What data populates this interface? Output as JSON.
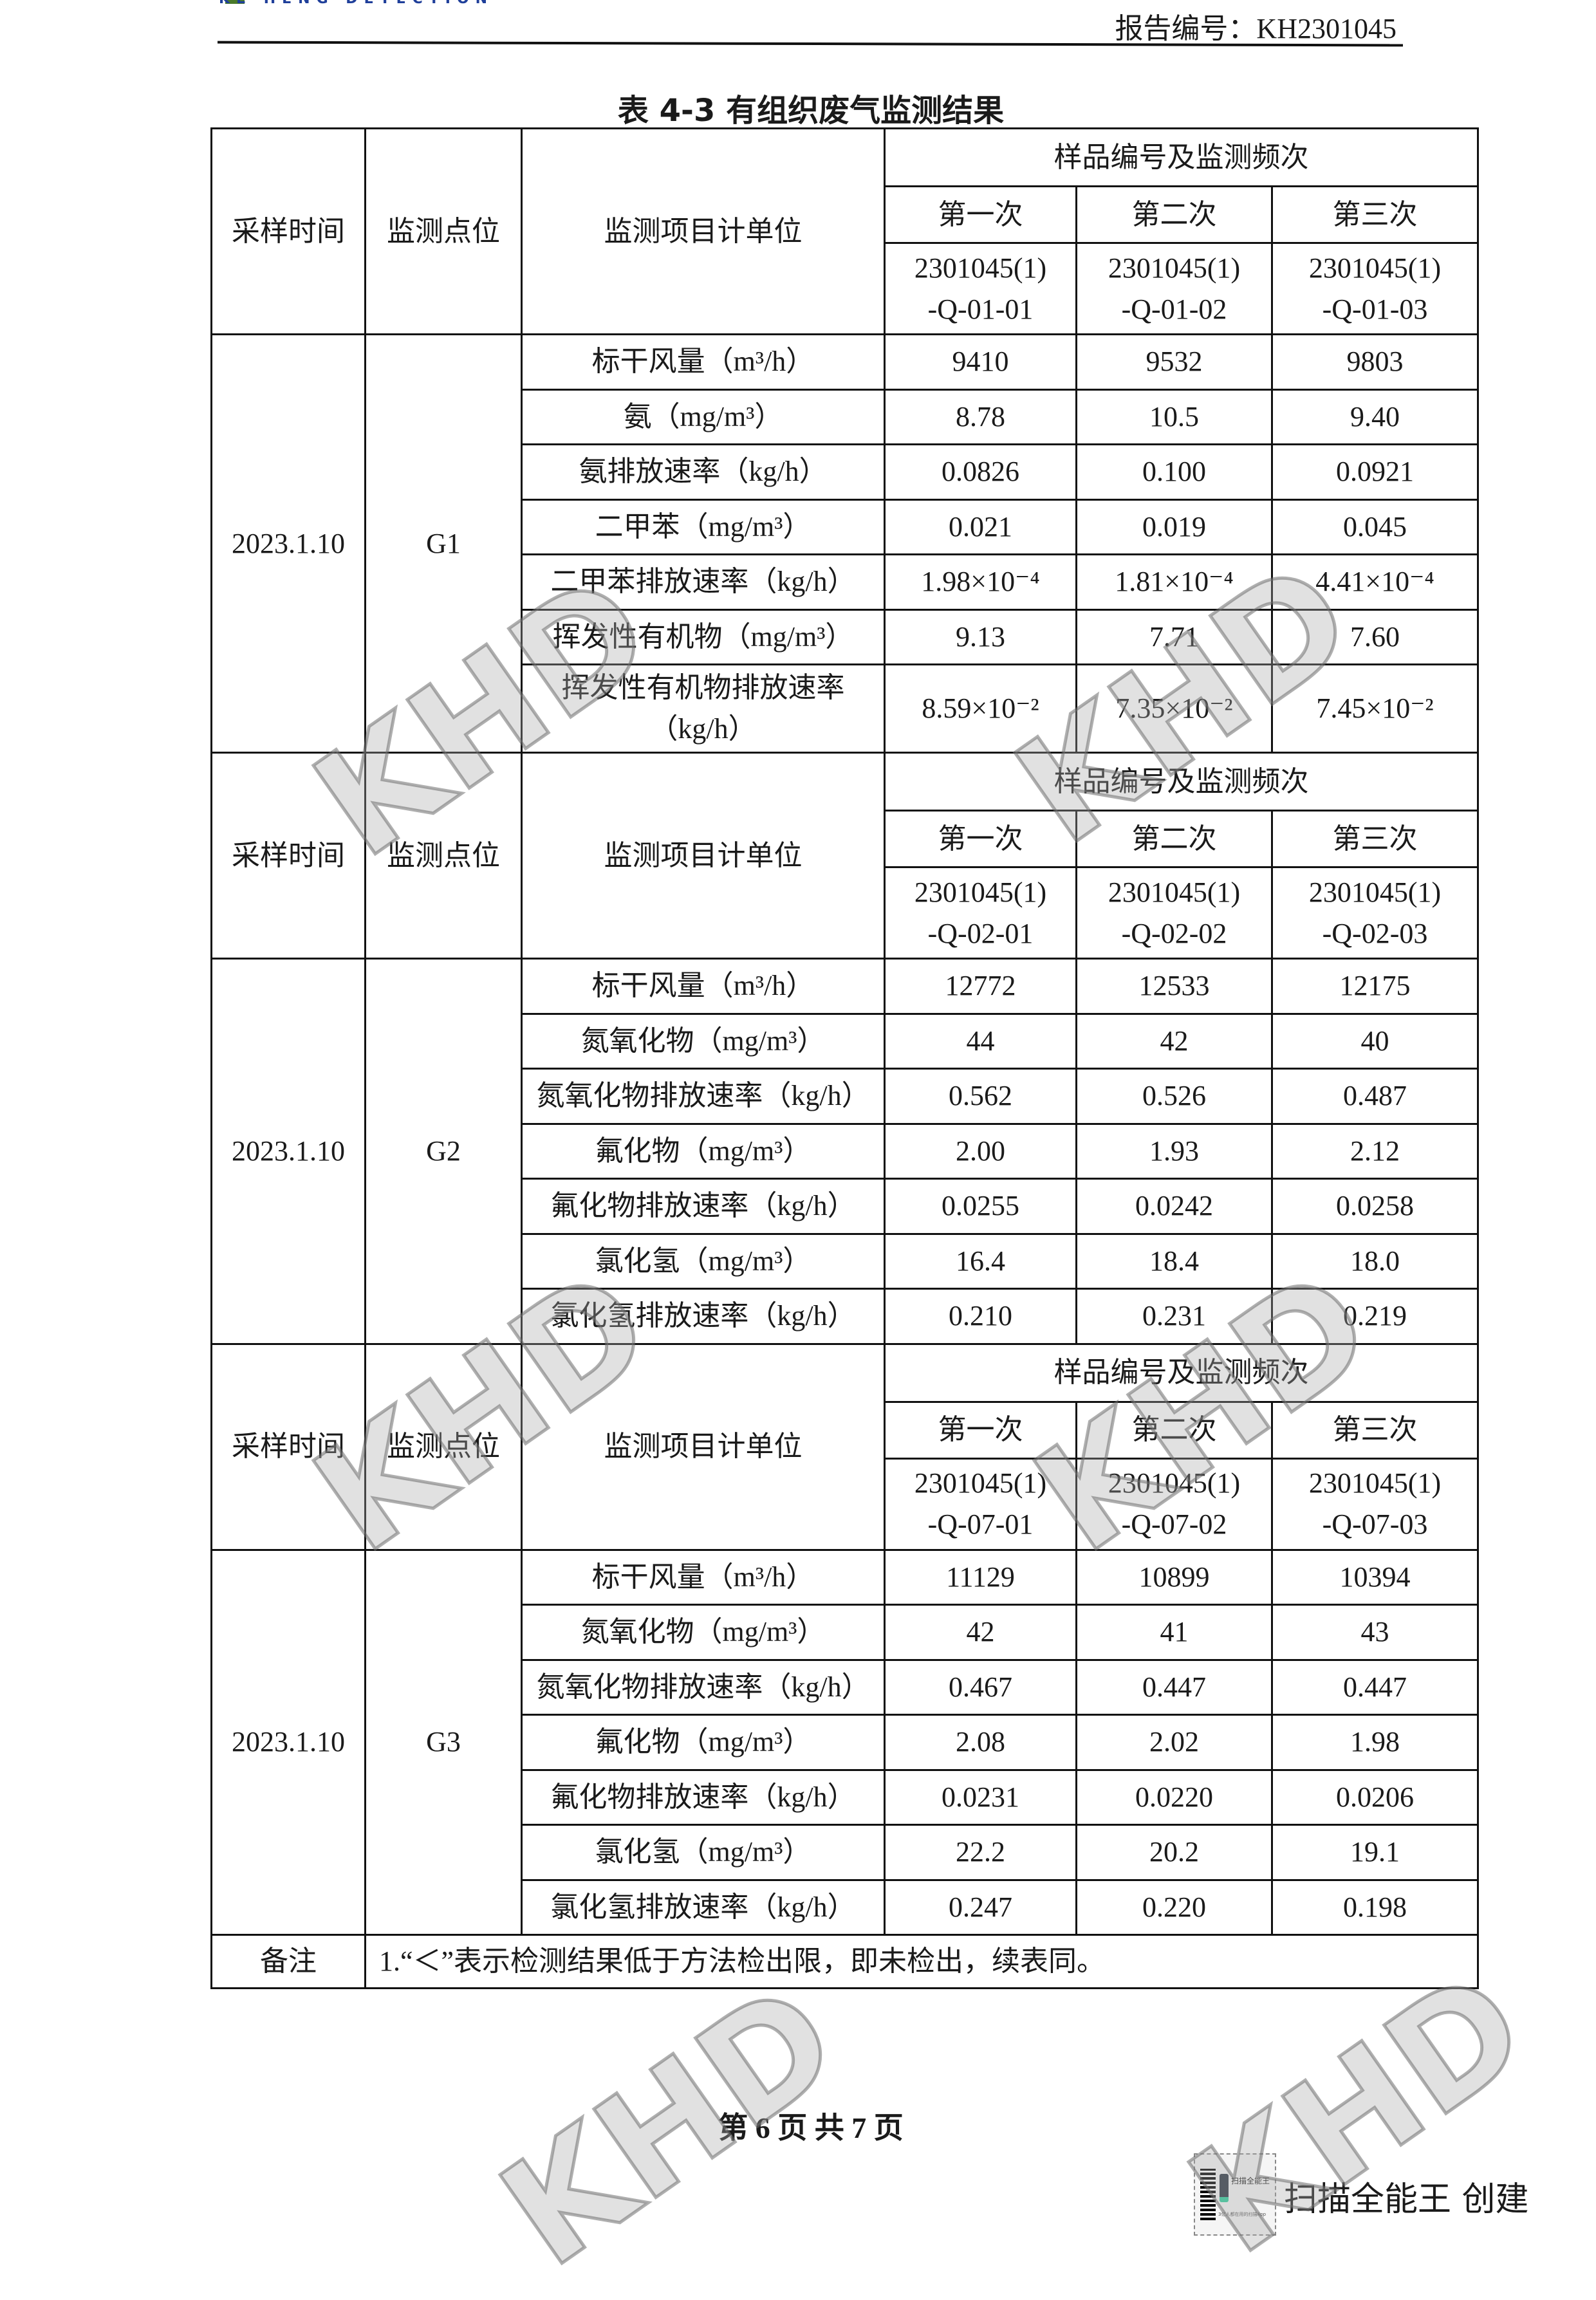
{
  "header": {
    "logo_text": "KE HENG DETECTION",
    "report_number": "报告编号：KH2301045"
  },
  "title": "表 4-3  有组织废气监测结果",
  "table": {
    "header_labels": {
      "time": "采样时间",
      "point": "监测点位",
      "item": "监测项目计单位",
      "sample_group": "样品编号及监测频次",
      "first": "第一次",
      "second": "第二次",
      "third": "第三次"
    },
    "blocks": [
      {
        "sample_ids": [
          "2301045(1)\n-Q-01-01",
          "2301045(1)\n-Q-01-02",
          "2301045(1)\n-Q-01-03"
        ],
        "date": "2023.1.10",
        "point": "G1",
        "rows": [
          {
            "item": "标干风量（m³/h）",
            "values": [
              "9410",
              "9532",
              "9803"
            ]
          },
          {
            "item": "氨（mg/m³）",
            "values": [
              "8.78",
              "10.5",
              "9.40"
            ]
          },
          {
            "item": "氨排放速率（kg/h）",
            "values": [
              "0.0826",
              "0.100",
              "0.0921"
            ]
          },
          {
            "item": "二甲苯（mg/m³）",
            "values": [
              "0.021",
              "0.019",
              "0.045"
            ]
          },
          {
            "item": "二甲苯排放速率（kg/h）",
            "values": [
              "1.98×10⁻⁴",
              "1.81×10⁻⁴",
              "4.41×10⁻⁴"
            ]
          },
          {
            "item": "挥发性有机物（mg/m³）",
            "values": [
              "9.13",
              "7.71",
              "7.60"
            ]
          },
          {
            "item": "挥发性有机物排放速率\n（kg/h）",
            "values": [
              "8.59×10⁻²",
              "7.35×10⁻²",
              "7.45×10⁻²"
            ]
          }
        ]
      },
      {
        "sample_ids": [
          "2301045(1)\n-Q-02-01",
          "2301045(1)\n-Q-02-02",
          "2301045(1)\n-Q-02-03"
        ],
        "date": "2023.1.10",
        "point": "G2",
        "rows": [
          {
            "item": "标干风量（m³/h）",
            "values": [
              "12772",
              "12533",
              "12175"
            ]
          },
          {
            "item": "氮氧化物（mg/m³）",
            "values": [
              "44",
              "42",
              "40"
            ]
          },
          {
            "item": "氮氧化物排放速率（kg/h）",
            "values": [
              "0.562",
              "0.526",
              "0.487"
            ]
          },
          {
            "item": "氟化物（mg/m³）",
            "values": [
              "2.00",
              "1.93",
              "2.12"
            ]
          },
          {
            "item": "氟化物排放速率（kg/h）",
            "values": [
              "0.0255",
              "0.0242",
              "0.0258"
            ]
          },
          {
            "item": "氯化氢（mg/m³）",
            "values": [
              "16.4",
              "18.4",
              "18.0"
            ]
          },
          {
            "item": "氯化氢排放速率（kg/h）",
            "values": [
              "0.210",
              "0.231",
              "0.219"
            ]
          }
        ]
      },
      {
        "sample_ids": [
          "2301045(1)\n-Q-07-01",
          "2301045(1)\n-Q-07-02",
          "2301045(1)\n-Q-07-03"
        ],
        "date": "2023.1.10",
        "point": "G3",
        "rows": [
          {
            "item": "标干风量（m³/h）",
            "values": [
              "11129",
              "10899",
              "10394"
            ]
          },
          {
            "item": "氮氧化物（mg/m³）",
            "values": [
              "42",
              "41",
              "43"
            ]
          },
          {
            "item": "氮氧化物排放速率（kg/h）",
            "values": [
              "0.467",
              "0.447",
              "0.447"
            ]
          },
          {
            "item": "氟化物（mg/m³）",
            "values": [
              "2.08",
              "2.02",
              "1.98"
            ]
          },
          {
            "item": "氟化物排放速率（kg/h）",
            "values": [
              "0.0231",
              "0.0220",
              "0.0206"
            ]
          },
          {
            "item": "氯化氢（mg/m³）",
            "values": [
              "22.2",
              "20.2",
              "19.1"
            ]
          },
          {
            "item": "氯化氢排放速率（kg/h）",
            "values": [
              "0.247",
              "0.220",
              "0.198"
            ]
          }
        ]
      }
    ],
    "remark_label": "备注",
    "remark_text": "1.“＜”表示检测结果低于方法检出限，即未检出，续表同。"
  },
  "footer": {
    "page_number": "第 6 页 共 7 页"
  },
  "scanner_badge": {
    "app_name": "扫描全能王",
    "tagline": "3亿人都在用的扫描App",
    "created_by": "扫描全能王  创建"
  },
  "watermark_text": "KHD"
}
